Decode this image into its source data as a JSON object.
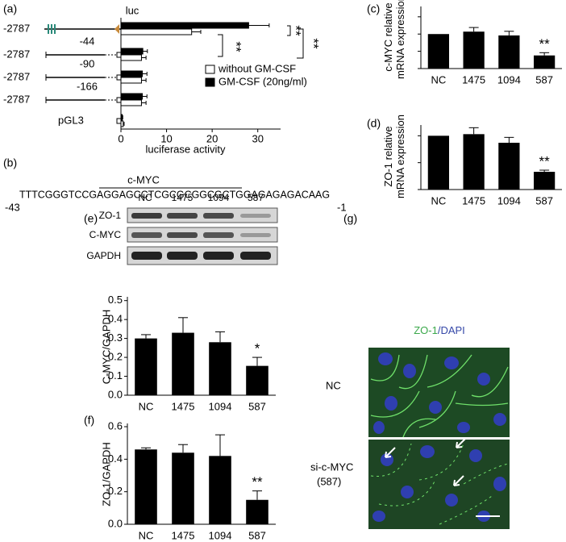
{
  "panel_labels": [
    "(a)",
    "(b)",
    "(c)",
    "(d)",
    "(e)",
    "(f)",
    "(g)"
  ],
  "chart_data": [
    {
      "type": "hbar",
      "constructs": [
        "-2787",
        "-2787",
        "-2787",
        "-2787",
        "pGL3"
      ],
      "deletions": [
        "-44",
        "-90",
        "-166"
      ],
      "reporter": "luc",
      "xlabel": "luciferase activity",
      "xlim": [
        0,
        35
      ],
      "xticks": [
        0,
        10,
        20,
        30
      ],
      "series": [
        {
          "name": "without GM-CSF",
          "color": "#ffffff",
          "values": [
            15.5,
            4.5,
            4.5,
            4.5,
            0.5
          ],
          "errors": [
            2,
            1,
            1,
            1,
            0.2
          ]
        },
        {
          "name": "GM-CSF (20ng/ml)",
          "color": "#000000",
          "values": [
            28,
            4.8,
            4.7,
            4.7,
            0.3
          ],
          "errors": [
            4.5,
            1,
            1,
            1,
            0.1
          ]
        }
      ],
      "significance": [
        "**",
        "**",
        "**"
      ]
    },
    {
      "type": "bar",
      "ylabel": [
        "c-MYC relative",
        "mRNA expression"
      ],
      "categories": [
        "NC",
        "1475",
        "1094",
        "587"
      ],
      "values": [
        1.0,
        1.07,
        0.96,
        0.38
      ],
      "errors": [
        0,
        0.12,
        0.12,
        0.08
      ],
      "color": "#000000",
      "ylim": [
        0,
        1.8
      ],
      "yticks": [
        0,
        0.5,
        1,
        1.5
      ],
      "show_tick_labels": false,
      "significance": [
        null,
        null,
        null,
        "**"
      ]
    },
    {
      "type": "bar",
      "ylabel": [
        "ZO-1 relative",
        "mRNA expression"
      ],
      "categories": [
        "NC",
        "1475",
        "1094",
        "587"
      ],
      "values": [
        1.0,
        1.03,
        0.87,
        0.33
      ],
      "errors": [
        0,
        0.12,
        0.1,
        0.03
      ],
      "color": "#000000",
      "ylim": [
        0,
        1.2
      ],
      "yticks": [
        0,
        0.5,
        1
      ],
      "show_tick_labels": false,
      "significance": [
        null,
        null,
        null,
        "**"
      ]
    },
    {
      "type": "bar",
      "ylabel": [
        "C-MYC/GAPDH"
      ],
      "categories": [
        "NC",
        "1475",
        "1094",
        "587"
      ],
      "values": [
        0.3,
        0.33,
        0.28,
        0.155
      ],
      "errors": [
        0.02,
        0.08,
        0.055,
        0.045
      ],
      "color": "#000000",
      "ylim": [
        0,
        0.52
      ],
      "yticks": [
        {
          "value": 0,
          "label": "0.0"
        },
        0.1,
        0.2,
        0.3,
        0.4,
        0.5
      ],
      "show_tick_labels": true,
      "significance": [
        null,
        null,
        null,
        "*"
      ]
    },
    {
      "type": "bar",
      "ylabel": [
        "ZO-1/GAPDH"
      ],
      "categories": [
        "NC",
        "1475",
        "1094",
        "587"
      ],
      "values": [
        0.46,
        0.44,
        0.42,
        0.15
      ],
      "errors": [
        0.01,
        0.05,
        0.13,
        0.055
      ],
      "color": "#000000",
      "ylim": [
        0,
        0.62
      ],
      "yticks": [
        {
          "value": 0,
          "label": "0.0"
        },
        0.2,
        0.4,
        0.6
      ],
      "show_tick_labels": true,
      "significance": [
        null,
        null,
        null,
        "**"
      ]
    }
  ],
  "sequence": {
    "motif": "c-MYC",
    "text": "TTTCGGGTCCGAGGAGCCTCGCGCGGCGCTGGAGAGAGACAAG",
    "start": "-43",
    "end": "-1"
  },
  "blot": {
    "lanes": [
      "NC",
      "1475",
      "1094",
      "587"
    ],
    "rows": [
      "ZO-1",
      "C-MYC",
      "GAPDH"
    ]
  },
  "image": {
    "title": [
      "ZO-1",
      "/DAPI"
    ],
    "rows": [
      [
        "NC"
      ],
      [
        "si-c-MYC",
        "(587)"
      ]
    ]
  }
}
